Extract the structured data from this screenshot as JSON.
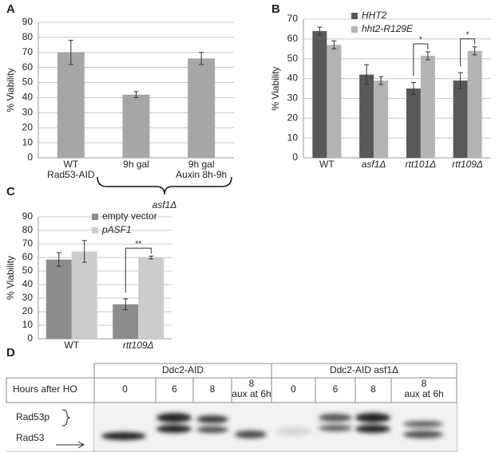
{
  "chart_data": [
    {
      "panel": "A",
      "type": "bar",
      "ylabel": "% Viability",
      "categories": [
        [
          "WT",
          "Rad53-AID"
        ],
        [
          "9h gal"
        ],
        [
          "9h gal",
          "Auxin 8h-9h"
        ]
      ],
      "series": [
        {
          "color": "#a6a6a6",
          "values": [
            70,
            42,
            66
          ],
          "errors": [
            8,
            2,
            4
          ]
        }
      ],
      "ylim": [
        0,
        90
      ],
      "yticks": [
        0,
        10,
        20,
        30,
        40,
        50,
        60,
        70,
        80,
        90
      ],
      "grid": true,
      "annotations": [
        "asf1Δ"
      ]
    },
    {
      "panel": "B",
      "type": "bar",
      "ylabel": "% Viability",
      "categories": [
        "WT",
        "asf1Δ",
        "rtt101Δ",
        "rtt109Δ"
      ],
      "series": [
        {
          "name": "HHT2",
          "color": "#595959",
          "values": [
            64,
            42,
            35,
            39
          ],
          "errors": [
            2,
            5,
            3,
            4
          ]
        },
        {
          "name": "hht2-R129E",
          "color": "#b3b3b3",
          "values": [
            57,
            39,
            51.5,
            54
          ],
          "errors": [
            2,
            2,
            2,
            2
          ]
        }
      ],
      "ylim": [
        0,
        70
      ],
      "yticks": [
        0,
        10,
        20,
        30,
        40,
        50,
        60,
        70
      ],
      "grid": true,
      "annotations": [
        "*",
        "*"
      ]
    },
    {
      "panel": "C",
      "type": "bar",
      "ylabel": "% Viability",
      "categories": [
        "WT",
        "rtt109Δ"
      ],
      "series": [
        {
          "name": "empty vector",
          "color": "#8c8c8c",
          "values": [
            58.5,
            25.5
          ],
          "errors": [
            5,
            4
          ]
        },
        {
          "name": "pASF1",
          "color": "#cccccc",
          "values": [
            64.5,
            60
          ],
          "errors": [
            8,
            1
          ]
        }
      ],
      "ylim": [
        0,
        90
      ],
      "yticks": [
        0,
        10,
        20,
        30,
        40,
        50,
        60,
        70,
        80,
        90
      ],
      "grid": true,
      "annotations": [
        "**"
      ]
    }
  ],
  "blot": {
    "panel": "D",
    "groups": [
      "Ddc2-AID",
      "Ddc2-AID asf1Δ"
    ],
    "row_label": "Hours after HO",
    "lanes": [
      [
        "0"
      ],
      [
        "6"
      ],
      [
        "8"
      ],
      [
        "8",
        "aux at 6h"
      ],
      [
        "0"
      ],
      [
        "6"
      ],
      [
        "8"
      ],
      [
        "8",
        "aux at 6h"
      ]
    ],
    "bands": [
      "Rad53p",
      "Rad53"
    ]
  }
}
